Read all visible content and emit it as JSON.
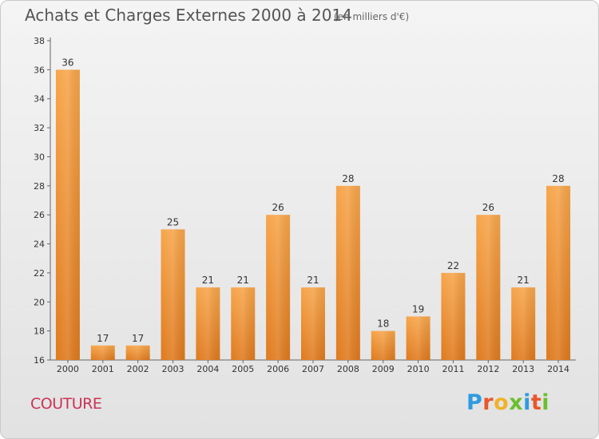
{
  "chart_data": {
    "type": "bar",
    "title": "Achats et Charges Externes 2000 à 2014",
    "subtitle": "(en milliers d'€)",
    "categories": [
      "2000",
      "2001",
      "2002",
      "2003",
      "2004",
      "2005",
      "2006",
      "2007",
      "2008",
      "2009",
      "2010",
      "2011",
      "2012",
      "2013",
      "2014"
    ],
    "values": [
      36,
      17,
      17,
      25,
      21,
      21,
      26,
      21,
      28,
      18,
      19,
      22,
      26,
      21,
      28
    ],
    "ylim": [
      16,
      38
    ],
    "yticks": [
      16,
      18,
      20,
      22,
      24,
      26,
      28,
      30,
      32,
      34,
      36,
      38
    ],
    "grid": false,
    "bar_color": "#f29a3b"
  },
  "footer": {
    "place": "COUTURE",
    "brand_letters": [
      "P",
      "r",
      "o",
      "x",
      "i",
      "t",
      "i"
    ],
    "brand_colors": [
      "#2e9be0",
      "#e8582a",
      "#f0b22b",
      "#6bbf2f",
      "#2e9be0",
      "#e8582a",
      "#6bbf2f"
    ]
  }
}
